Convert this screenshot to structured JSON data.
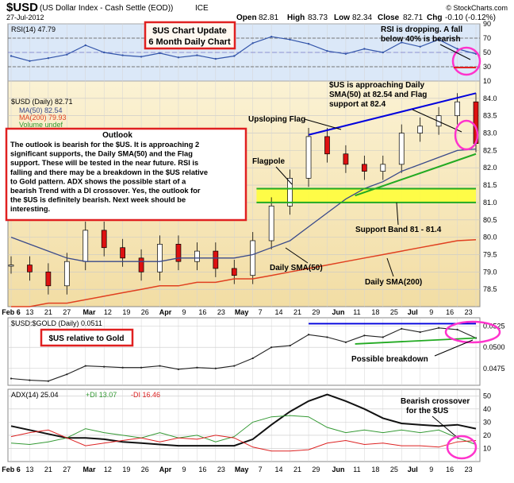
{
  "header": {
    "symbol": "$USD",
    "name": "(US Dollar Index - Cash Settle (EOD))",
    "exchange": "ICE",
    "date": "27-Jul-2012",
    "open_label": "Open",
    "open": "82.81",
    "high_label": "High",
    "high": "83.73",
    "low_label": "Low",
    "low": "82.34",
    "close_label": "Close",
    "close": "82.71",
    "chg_label": "Chg",
    "chg": "-0.10 (-0.12%)",
    "source": "© StockCharts.com"
  },
  "colors": {
    "rsi_bg": "#dbe8f8",
    "price_bg": "#f7e7b7",
    "band": "#ffff33",
    "red_box": "#e02020",
    "circle": "#ff33cc",
    "sma50": "#3a4a8a",
    "sma200": "#e04020",
    "flag_upper": "#0000dd",
    "flag_lower": "#22aa22"
  },
  "chart_data": [
    {
      "type": "line",
      "panel": "rsi",
      "legend": "RSI(14) 47.79",
      "ylim": [
        10,
        90
      ],
      "yticks": [
        90,
        70,
        50,
        30,
        10
      ],
      "reference_lines": [
        70,
        30
      ],
      "x": [
        "Feb 6",
        "Feb 13",
        "Feb 21",
        "Feb 27",
        "Mar 5",
        "Mar 12",
        "Mar 19",
        "Mar 26",
        "Apr 2",
        "Apr 9",
        "Apr 16",
        "Apr 23",
        "Apr 30",
        "May 7",
        "May 14",
        "May 21",
        "May 29",
        "Jun 4",
        "Jun 11",
        "Jun 18",
        "Jun 25",
        "Jul 2",
        "Jul 9",
        "Jul 16",
        "Jul 23",
        "Jul 27"
      ],
      "series": [
        {
          "name": "RSI(14)",
          "values": [
            45,
            38,
            42,
            47,
            60,
            50,
            46,
            44,
            49,
            43,
            46,
            41,
            45,
            63,
            72,
            68,
            62,
            52,
            48,
            55,
            50,
            64,
            58,
            68,
            55,
            48
          ]
        }
      ]
    },
    {
      "type": "line",
      "panel": "price",
      "ylim": [
        78,
        84.5
      ],
      "yticks": [
        84.0,
        83.5,
        83.0,
        82.5,
        82.0,
        81.5,
        81.0,
        80.5,
        80.0,
        79.5,
        79.0,
        78.5
      ],
      "x": [
        "Feb 6",
        "Feb 13",
        "Feb 21",
        "Feb 27",
        "Mar 5",
        "Mar 12",
        "Mar 19",
        "Mar 26",
        "Apr 2",
        "Apr 9",
        "Apr 16",
        "Apr 23",
        "Apr 30",
        "May 7",
        "May 14",
        "May 21",
        "May 29",
        "Jun 4",
        "Jun 11",
        "Jun 18",
        "Jun 25",
        "Jul 2",
        "Jul 9",
        "Jul 16",
        "Jul 23",
        "Jul 27"
      ],
      "series": [
        {
          "name": "$USD (Daily)",
          "values": [
            79.2,
            79.0,
            78.6,
            79.3,
            80.2,
            79.7,
            79.4,
            79.0,
            79.8,
            79.3,
            79.6,
            79.1,
            78.9,
            79.9,
            80.9,
            81.7,
            82.9,
            82.4,
            82.1,
            81.9,
            82.1,
            83.0,
            83.2,
            83.5,
            83.9,
            82.7
          ]
        },
        {
          "name": "MA(50)",
          "values": [
            80.0,
            79.8,
            79.6,
            79.4,
            79.3,
            79.3,
            79.3,
            79.3,
            79.3,
            79.4,
            79.4,
            79.4,
            79.4,
            79.5,
            79.7,
            79.9,
            80.3,
            80.7,
            81.1,
            81.4,
            81.6,
            81.9,
            82.1,
            82.3,
            82.5,
            82.54
          ]
        },
        {
          "name": "MA(200)",
          "values": [
            78.0,
            78.0,
            78.1,
            78.1,
            78.2,
            78.3,
            78.4,
            78.5,
            78.6,
            78.6,
            78.7,
            78.7,
            78.8,
            78.8,
            78.9,
            79.0,
            79.1,
            79.2,
            79.3,
            79.4,
            79.5,
            79.6,
            79.7,
            79.8,
            79.9,
            79.93
          ]
        }
      ]
    },
    {
      "type": "line",
      "panel": "usd_gold",
      "legend": "$USD:$GOLD (Daily) 0.0511",
      "ylim": [
        0.0455,
        0.0535
      ],
      "yticks": [
        0.0525,
        0.05,
        0.0475
      ],
      "x": [
        "Feb 6",
        "Feb 13",
        "Feb 21",
        "Feb 27",
        "Mar 5",
        "Mar 12",
        "Mar 19",
        "Mar 26",
        "Apr 2",
        "Apr 9",
        "Apr 16",
        "Apr 23",
        "Apr 30",
        "May 7",
        "May 14",
        "May 21",
        "May 29",
        "Jun 4",
        "Jun 11",
        "Jun 18",
        "Jun 25",
        "Jul 2",
        "Jul 9",
        "Jul 16",
        "Jul 23",
        "Jul 27"
      ],
      "series": [
        {
          "name": "$USD:$GOLD",
          "values": [
            0.0463,
            0.0461,
            0.046,
            0.0468,
            0.0478,
            0.0477,
            0.0476,
            0.0476,
            0.0478,
            0.0474,
            0.0476,
            0.0475,
            0.0478,
            0.0487,
            0.05,
            0.0502,
            0.0515,
            0.0512,
            0.0506,
            0.0514,
            0.0512,
            0.0522,
            0.0518,
            0.0523,
            0.0521,
            0.0511
          ]
        }
      ]
    },
    {
      "type": "line",
      "panel": "adx",
      "ylim": [
        0,
        55
      ],
      "yticks": [
        50,
        40,
        30,
        20,
        10
      ],
      "legend": {
        "adx": "ADX(14) 25.04",
        "plus_di": "+DI 13.07",
        "minus_di": "-DI 16.46"
      },
      "x": [
        "Feb 6",
        "Feb 13",
        "Feb 21",
        "Feb 27",
        "Mar 5",
        "Mar 12",
        "Mar 19",
        "Mar 26",
        "Apr 2",
        "Apr 9",
        "Apr 16",
        "Apr 23",
        "Apr 30",
        "May 7",
        "May 14",
        "May 21",
        "May 29",
        "Jun 4",
        "Jun 11",
        "Jun 18",
        "Jun 25",
        "Jul 2",
        "Jul 9",
        "Jul 16",
        "Jul 23",
        "Jul 27"
      ],
      "series": [
        {
          "name": "ADX(14)",
          "values": [
            27,
            24,
            21,
            18,
            18,
            17,
            15,
            14,
            13,
            12,
            12,
            12,
            12,
            17,
            28,
            38,
            46,
            51,
            46,
            40,
            33,
            29,
            28,
            27,
            28,
            25
          ]
        },
        {
          "name": "+DI",
          "values": [
            14,
            13,
            15,
            18,
            25,
            22,
            20,
            18,
            22,
            18,
            20,
            15,
            19,
            30,
            34,
            35,
            34,
            26,
            22,
            24,
            22,
            24,
            22,
            24,
            18,
            13
          ]
        },
        {
          "name": "-DI",
          "values": [
            19,
            22,
            24,
            18,
            12,
            14,
            16,
            18,
            15,
            18,
            17,
            20,
            18,
            11,
            8,
            8,
            9,
            14,
            16,
            13,
            14,
            12,
            12,
            11,
            15,
            16
          ]
        }
      ]
    }
  ],
  "x_axis_labels": [
    "Feb 6",
    "13",
    "21",
    "27",
    "Mar",
    "12",
    "19",
    "26",
    "Apr",
    "9",
    "16",
    "23",
    "May",
    "7",
    "14",
    "21",
    "29",
    "Jun",
    "11",
    "18",
    "25",
    "Jul",
    "9",
    "16",
    "23"
  ],
  "legends": {
    "usd_daily": "$USD (Daily) 82.71",
    "ma50": "MA(50) 82.54",
    "ma200": "MA(200) 79.93",
    "volume": "Volume undef"
  },
  "annotations": {
    "chart_update_title": "$US Chart Update",
    "chart_update_sub": "6 Month Daily Chart",
    "rsi_note_line1": "RSI is dropping. A fall",
    "rsi_note_line2": "below 40% is bearish",
    "approach_line1": "$US is approaching Daily",
    "approach_line2": "SMA(50) at 82.54 and Flag",
    "approach_line3": "support at 82.4",
    "upsloping_flag": "Upsloping Flag",
    "flagpole": "Flagpole",
    "support_band": "Support Band 81 - 81.4",
    "daily_sma50": "Daily SMA(50)",
    "daily_sma200": "Daily SMA(200)",
    "relative_gold": "$US relative to Gold",
    "possible_breakdown": "Possible breakdown",
    "bearish_line1": "Bearish crossover",
    "bearish_line2": "for the $US",
    "outlook_title": "Outlook",
    "outlook_lines": [
      "The outlook is bearish for the $US. It is approaching 2",
      "significant supports, the Daily SMA(50) and the Flag",
      "support. These will be tested in the near future. RSI is",
      "falling and there may be a breakdown in the $US relative",
      "to Gold pattern. ADX shows the possible start of a",
      "bearish Trend with a DI crossover. Yes, the outlook for",
      "the $US is definitely bearish. Next week should be",
      "interesting."
    ]
  }
}
